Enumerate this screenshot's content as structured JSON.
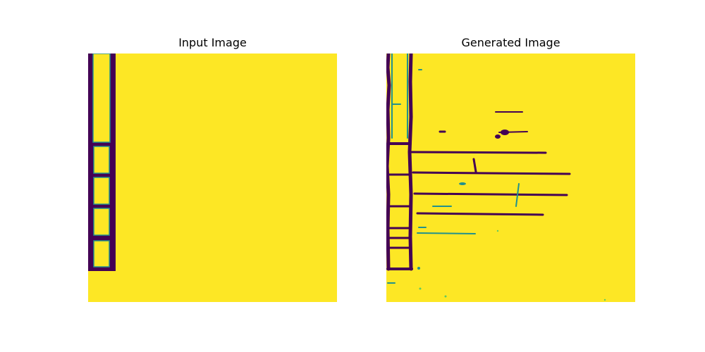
{
  "panels": [
    {
      "title": "Input Image"
    },
    {
      "title": "Generated Image"
    }
  ],
  "colors": {
    "background": "#fde725",
    "dark": "#440154",
    "mid_teal": "#21918c",
    "light_green": "#5ec962"
  }
}
